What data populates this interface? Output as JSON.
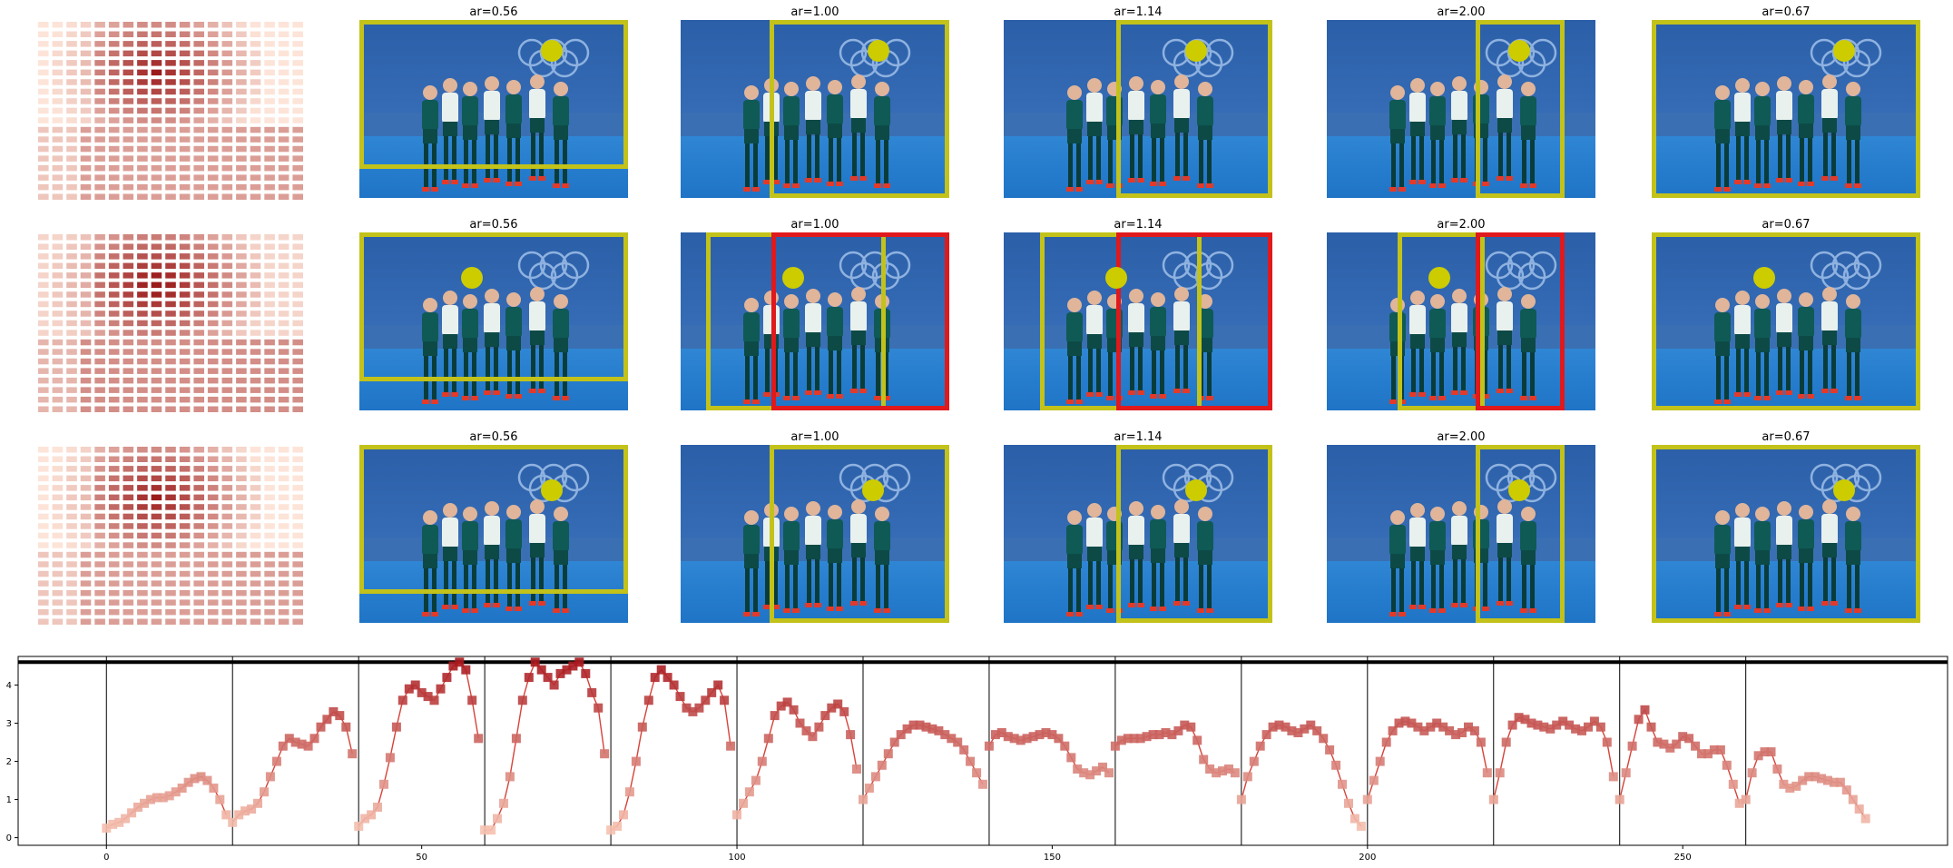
{
  "figure": {
    "rows": [
      {
        "grid_strength": "low",
        "panels": [
          {
            "title": "ar=0.56",
            "box": "yellow",
            "marker": "upper-right"
          },
          {
            "title": "ar=1.00",
            "box": "yellow",
            "marker": "upper-right"
          },
          {
            "title": "ar=1.14",
            "box": "yellow",
            "marker": "upper-right"
          },
          {
            "title": "ar=2.00",
            "box": "yellow",
            "marker": "upper-right"
          },
          {
            "title": "ar=0.67",
            "box": "yellow",
            "marker": "upper-right"
          }
        ]
      },
      {
        "grid_strength": "medium",
        "panels": [
          {
            "title": "ar=0.56",
            "box": "yellow",
            "marker": "center-left"
          },
          {
            "title": "ar=1.00",
            "box": "yellow+red",
            "marker": "center-left"
          },
          {
            "title": "ar=1.14",
            "box": "yellow+red",
            "marker": "center-left"
          },
          {
            "title": "ar=2.00",
            "box": "yellow+red",
            "marker": "center-left"
          },
          {
            "title": "ar=0.67",
            "box": "yellow",
            "marker": "center-left"
          }
        ]
      },
      {
        "grid_strength": "low",
        "panels": [
          {
            "title": "ar=0.56",
            "box": "yellow",
            "marker": "center-right"
          },
          {
            "title": "ar=1.00",
            "box": "yellow",
            "marker": "center-right"
          },
          {
            "title": "ar=1.14",
            "box": "yellow",
            "marker": "center-right"
          },
          {
            "title": "ar=2.00",
            "box": "yellow",
            "marker": "center-right"
          },
          {
            "title": "ar=0.67",
            "box": "yellow",
            "marker": "center-right"
          }
        ]
      }
    ],
    "colors": {
      "box_yellow": "#c2c21a",
      "box_red": "#e0191c",
      "marker": "#cccc00",
      "heat_light": "#fde4d8",
      "heat_dark": "#9b1b1b"
    }
  },
  "chart_data": {
    "type": "line",
    "xlim": [
      -14,
      292
    ],
    "ylim": [
      -0.2,
      4.75
    ],
    "xticks": [
      0,
      50,
      100,
      150,
      200,
      250
    ],
    "yticks": [
      0,
      1,
      2,
      3,
      4
    ],
    "threshold_line": 4.6,
    "segment_boundaries": [
      0,
      20,
      40,
      60,
      80,
      100,
      120,
      140,
      160,
      180,
      200,
      220,
      240,
      260
    ],
    "segments": [
      [
        0.25,
        0.35,
        0.4,
        0.5,
        0.65,
        0.8,
        0.9,
        1.0,
        1.05,
        1.05,
        1.1,
        1.2,
        1.3,
        1.45,
        1.55,
        1.6,
        1.5,
        1.3,
        1.0,
        0.6
      ],
      [
        0.4,
        0.6,
        0.7,
        0.75,
        0.9,
        1.2,
        1.6,
        2.0,
        2.4,
        2.6,
        2.5,
        2.45,
        2.4,
        2.6,
        2.9,
        3.1,
        3.3,
        3.2,
        2.9,
        2.2
      ],
      [
        0.3,
        0.5,
        0.6,
        0.8,
        1.4,
        2.1,
        2.9,
        3.6,
        3.9,
        4.0,
        3.8,
        3.7,
        3.6,
        3.9,
        4.2,
        4.5,
        4.6,
        4.4,
        3.6,
        2.6
      ],
      [
        0.2,
        0.2,
        0.5,
        0.9,
        1.6,
        2.6,
        3.6,
        4.2,
        4.6,
        4.4,
        4.2,
        4.0,
        4.3,
        4.4,
        4.5,
        4.6,
        4.3,
        3.8,
        3.4,
        2.2
      ],
      [
        0.2,
        0.3,
        0.6,
        1.2,
        2.0,
        2.9,
        3.6,
        4.2,
        4.4,
        4.2,
        4.0,
        3.7,
        3.4,
        3.3,
        3.4,
        3.6,
        3.8,
        4.0,
        3.6,
        2.4
      ],
      [
        0.6,
        0.9,
        1.2,
        1.5,
        2.0,
        2.6,
        3.2,
        3.45,
        3.55,
        3.35,
        3.0,
        2.8,
        2.65,
        2.9,
        3.2,
        3.4,
        3.5,
        3.3,
        2.7,
        1.8
      ],
      [
        1.0,
        1.3,
        1.6,
        1.9,
        2.2,
        2.5,
        2.7,
        2.85,
        2.95,
        2.95,
        2.9,
        2.85,
        2.8,
        2.7,
        2.6,
        2.5,
        2.3,
        2.0,
        1.7,
        1.4
      ],
      [
        2.4,
        2.7,
        2.75,
        2.65,
        2.6,
        2.55,
        2.6,
        2.65,
        2.7,
        2.75,
        2.7,
        2.6,
        2.4,
        2.1,
        1.8,
        1.7,
        1.65,
        1.75,
        1.85,
        1.7
      ],
      [
        2.4,
        2.55,
        2.6,
        2.6,
        2.6,
        2.65,
        2.7,
        2.7,
        2.75,
        2.7,
        2.8,
        2.95,
        2.9,
        2.55,
        2.05,
        1.8,
        1.7,
        1.75,
        1.8,
        1.7
      ],
      [
        1.0,
        1.6,
        2.0,
        2.4,
        2.7,
        2.9,
        2.95,
        2.9,
        2.8,
        2.75,
        2.85,
        2.95,
        2.8,
        2.6,
        2.3,
        1.9,
        1.4,
        0.9,
        0.5,
        0.3
      ],
      [
        1.0,
        1.5,
        2.0,
        2.5,
        2.8,
        3.0,
        3.05,
        3.0,
        2.9,
        2.8,
        2.9,
        3.0,
        2.9,
        2.8,
        2.7,
        2.75,
        2.9,
        2.8,
        2.5,
        1.7
      ],
      [
        1.0,
        1.7,
        2.5,
        2.95,
        3.15,
        3.1,
        3.0,
        2.95,
        2.9,
        2.85,
        2.95,
        3.05,
        2.95,
        2.85,
        2.8,
        2.9,
        3.05,
        2.9,
        2.5,
        1.6
      ],
      [
        1.0,
        1.7,
        2.4,
        3.1,
        3.35,
        2.9,
        2.5,
        2.45,
        2.35,
        2.45,
        2.65,
        2.6,
        2.4,
        2.2,
        2.2,
        2.3,
        2.3,
        1.9,
        1.4,
        0.9
      ],
      [
        1.0,
        1.7,
        2.15,
        2.25,
        2.25,
        1.8,
        1.4,
        1.3,
        1.35,
        1.5,
        1.6,
        1.6,
        1.55,
        1.5,
        1.45,
        1.45,
        1.25,
        1.0,
        0.75,
        0.5
      ]
    ]
  }
}
